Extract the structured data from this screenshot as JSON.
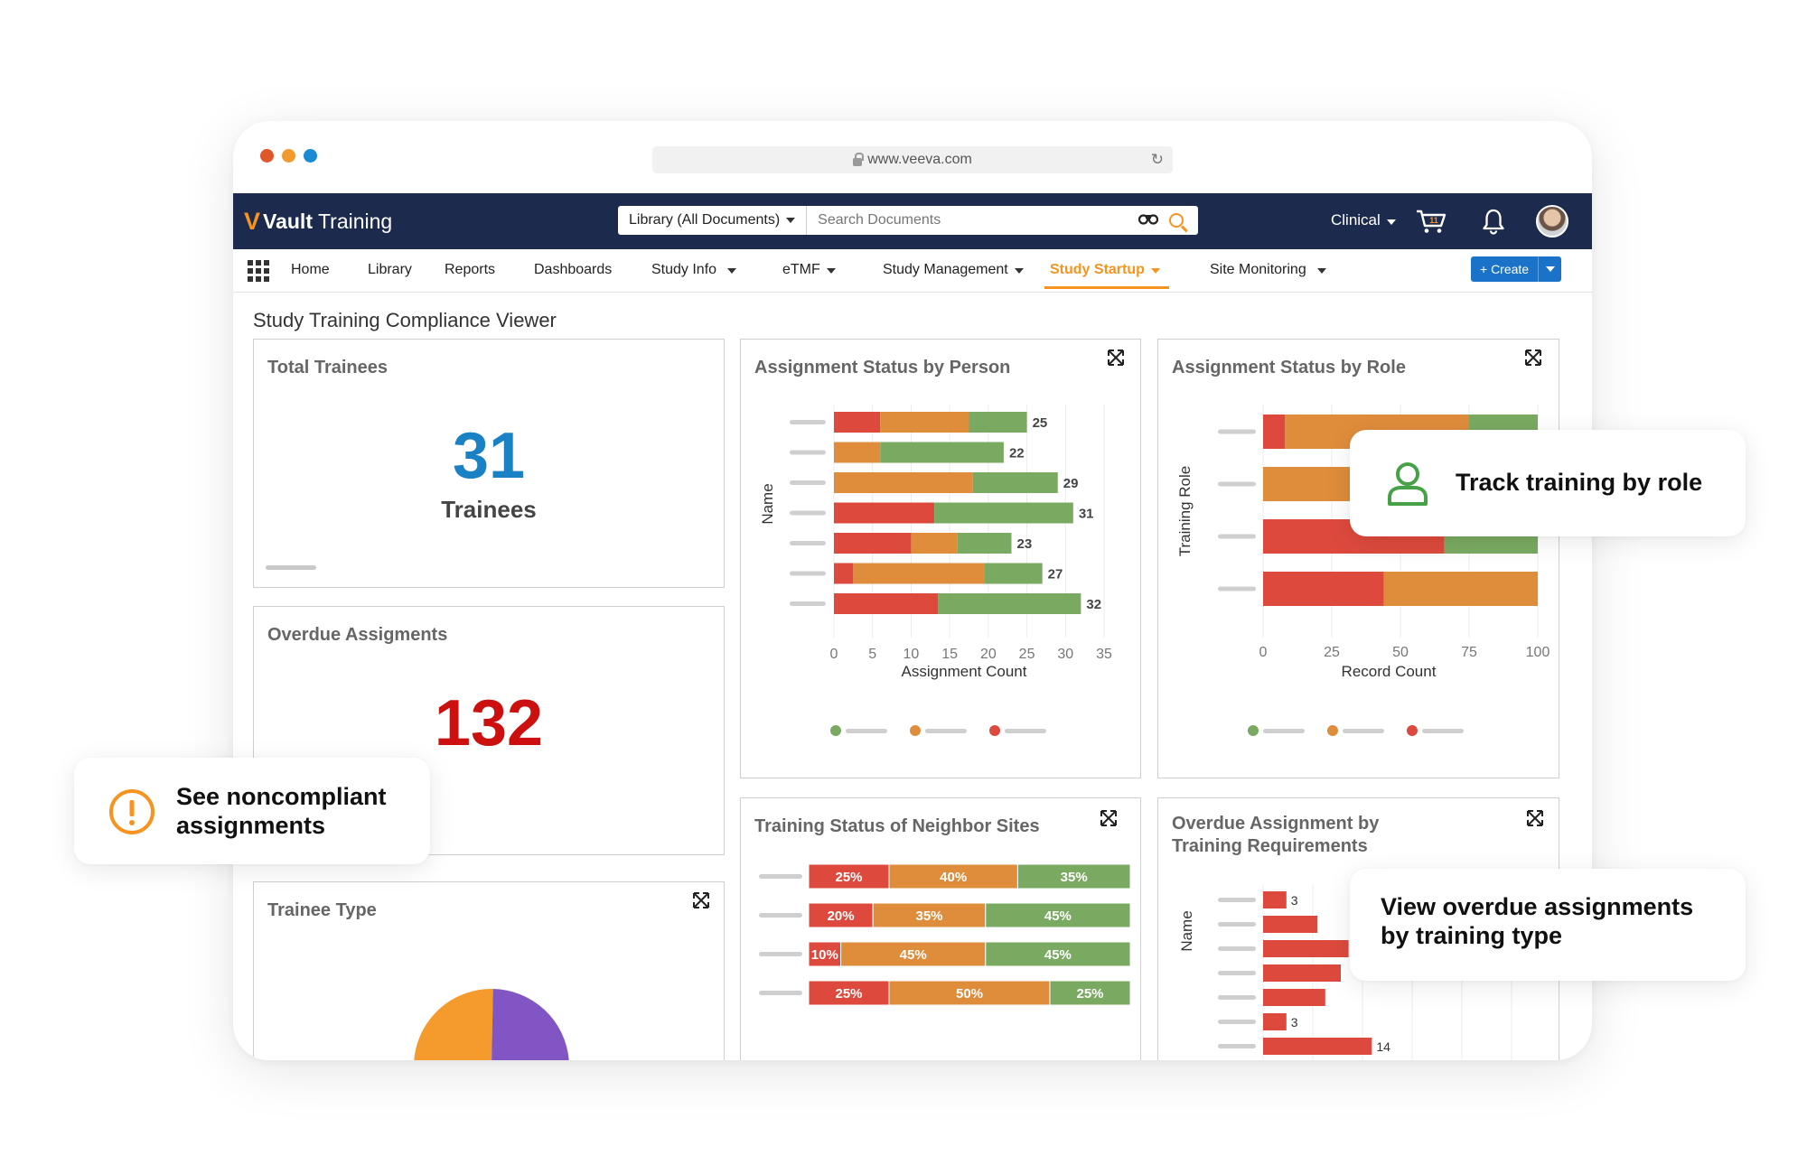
{
  "browser": {
    "url": "www.veeva.com",
    "dot_colors": [
      "#e0572b",
      "#f29a2e",
      "#1a8ad4"
    ]
  },
  "header": {
    "logo_v": "V",
    "logo_bold": "Vault",
    "logo_rest": "Training",
    "search_scope": "Library (All Documents)",
    "search_placeholder": "Search Documents",
    "workspace": "Clinical",
    "cart_count": "11"
  },
  "nav": {
    "items": [
      "Home",
      "Library",
      "Reports",
      "Dashboards",
      "Study Info",
      "eTMF",
      "Study Management",
      "Study Startup",
      "Site Monitoring"
    ],
    "active": "Study Startup",
    "create_label": "+ Create"
  },
  "page": {
    "title": "Study Training Compliance Viewer"
  },
  "colors": {
    "green": "#7aaa62",
    "orange": "#df8c3b",
    "red": "#dd4a3d",
    "blue_num": "#1a82c4",
    "red_num": "#cc1010"
  },
  "panels": {
    "total_trainees": {
      "title": "Total Trainees",
      "value": "31",
      "label": "Trainees"
    },
    "overdue": {
      "title": "Overdue Assigments",
      "value": "132"
    },
    "trainee_type": {
      "title": "Trainee Type"
    },
    "by_person": {
      "title": "Assignment Status by Person",
      "xlabel": "Assignment Count",
      "ylabel": "Name"
    },
    "by_role": {
      "title": "Assignment Status by Role",
      "xlabel": "Record Count",
      "ylabel": "Training Role"
    },
    "neighbor": {
      "title": "Training Status of Neighbor Sites"
    },
    "overdue_req": {
      "title_line1": "Overdue Assignment by",
      "title_line2": "Training Requirements",
      "ylabel": "Name"
    }
  },
  "callouts": {
    "role": "Track training by role",
    "noncompliant_line1": "See noncompliant",
    "noncompliant_line2": "assignments",
    "overdue_line1": "View overdue assignments",
    "overdue_line2": "by training type"
  },
  "chart_data": [
    {
      "type": "bar",
      "orientation": "horizontal",
      "stacked": true,
      "title": "Assignment Status by Person",
      "xlabel": "Assignment Count",
      "ylabel": "Name",
      "xlim": [
        0,
        35
      ],
      "xticks": [
        0,
        5,
        10,
        15,
        20,
        25,
        30,
        35
      ],
      "series": [
        {
          "color": "#dd4a3d",
          "values": [
            6,
            0,
            0,
            13,
            10,
            2.5,
            13.5
          ]
        },
        {
          "color": "#df8c3b",
          "values": [
            11.5,
            6,
            18,
            0,
            6,
            17,
            0
          ]
        },
        {
          "color": "#7aaa62",
          "values": [
            7.5,
            16,
            11,
            18,
            7,
            7.5,
            18.5
          ]
        }
      ],
      "totals": [
        25,
        22,
        29,
        31,
        23,
        27,
        32
      ]
    },
    {
      "type": "bar",
      "orientation": "horizontal",
      "stacked": true,
      "title": "Assignment Status by Role",
      "xlabel": "Record Count",
      "ylabel": "Training Role",
      "xlim": [
        0,
        100
      ],
      "xticks": [
        0,
        25,
        50,
        75,
        100
      ],
      "series": [
        {
          "color": "#dd4a3d",
          "values": [
            8,
            0,
            66,
            44
          ]
        },
        {
          "color": "#df8c3b",
          "values": [
            67,
            55,
            0,
            56
          ]
        },
        {
          "color": "#7aaa62",
          "values": [
            25,
            45,
            34,
            0
          ]
        }
      ]
    },
    {
      "type": "bar",
      "orientation": "horizontal",
      "stacked": true,
      "percent": true,
      "title": "Training Status of Neighbor Sites",
      "series": [
        {
          "color": "#dd4a3d",
          "values": [
            25,
            20,
            10,
            25
          ]
        },
        {
          "color": "#df8c3b",
          "values": [
            40,
            35,
            45,
            50
          ]
        },
        {
          "color": "#7aaa62",
          "values": [
            35,
            45,
            45,
            25
          ]
        }
      ]
    },
    {
      "type": "bar",
      "orientation": "horizontal",
      "title": "Overdue Assignment by Training Requirements",
      "ylabel": "Name",
      "values": [
        3,
        7,
        11,
        10,
        8,
        3,
        14
      ],
      "labels": [
        "3",
        "",
        "",
        "",
        "",
        "3",
        "14"
      ],
      "color": "#dd4a3d"
    },
    {
      "type": "pie",
      "title": "Trainee Type",
      "slices": [
        {
          "value": 30,
          "color": "#f59a2d"
        },
        {
          "value": 70,
          "color": "#8156c4"
        }
      ]
    }
  ]
}
